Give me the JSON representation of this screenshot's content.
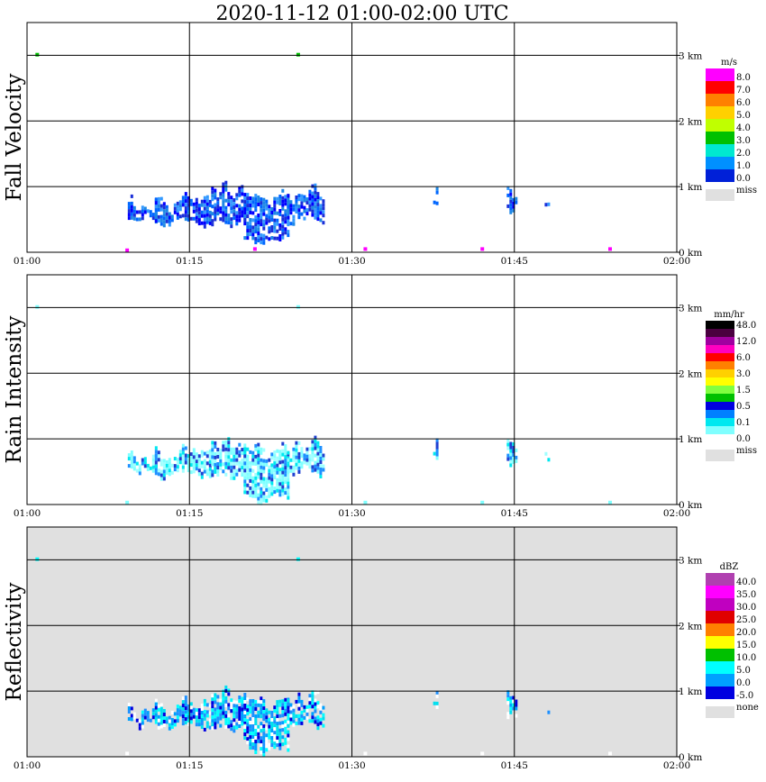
{
  "chart_data": {
    "type": "heatmap",
    "title": "2020-11-12   01:00-02:00 UTC",
    "x_ticks": [
      "01:00",
      "01:15",
      "01:30",
      "01:45",
      "02:00"
    ],
    "xlim_minutes": [
      0,
      60
    ],
    "y_ticks": [
      "0 km",
      "1 km",
      "2 km",
      "3 km"
    ],
    "ylim_km": [
      0,
      3.5
    ],
    "grid": true,
    "panels": [
      {
        "ylabel": "Fall Velocity",
        "unit": "m/s",
        "background": "#ffffff",
        "colorbar": [
          {
            "label": "8.0",
            "color": "#ff00ff"
          },
          {
            "label": "7.0",
            "color": "#ff0000"
          },
          {
            "label": "6.0",
            "color": "#ff8000"
          },
          {
            "label": "5.0",
            "color": "#ffd000"
          },
          {
            "label": "4.0",
            "color": "#c0ff00"
          },
          {
            "label": "3.0",
            "color": "#00c000"
          },
          {
            "label": "2.0",
            "color": "#00e8d0"
          },
          {
            "label": "1.0",
            "color": "#0090ff"
          },
          {
            "label": "0.0",
            "color": "#0020d8"
          }
        ],
        "miss_label": "miss",
        "miss_color": "#e0e0e0",
        "echo_palette": [
          "#0000ff",
          "#1a2fd8",
          "#0066ff",
          "#1e88e5",
          "#3399ff"
        ],
        "echoes": [
          {
            "t0": 9.3,
            "t1": 11.8,
            "hbot": 0.45,
            "htop": 0.8
          },
          {
            "t0": 11.8,
            "t1": 17.0,
            "hbot": 0.42,
            "htop": 0.88
          },
          {
            "t0": 17.0,
            "t1": 20.0,
            "hbot": 0.38,
            "htop": 1.05
          },
          {
            "t0": 20.0,
            "t1": 24.0,
            "hbot": 0.1,
            "htop": 0.95
          },
          {
            "t0": 24.0,
            "t1": 27.3,
            "hbot": 0.45,
            "htop": 1.0
          },
          {
            "t0": 37.5,
            "t1": 37.9,
            "hbot": 0.72,
            "htop": 0.98
          },
          {
            "t0": 44.3,
            "t1": 45.2,
            "hbot": 0.55,
            "htop": 1.03
          },
          {
            "t0": 47.8,
            "t1": 48.1,
            "hbot": 0.62,
            "htop": 0.7
          }
        ],
        "speckles": [
          {
            "t": 0.9,
            "h": 3.01,
            "color": "#00c000"
          },
          {
            "t": 25.0,
            "h": 3.01,
            "color": "#00c000"
          },
          {
            "t": 9.2,
            "h": 0.03,
            "color": "#ff00ff"
          },
          {
            "t": 21.0,
            "h": 0.05,
            "color": "#ff00ff"
          },
          {
            "t": 31.2,
            "h": 0.05,
            "color": "#ff00ff"
          },
          {
            "t": 42.0,
            "h": 0.05,
            "color": "#ff00ff"
          },
          {
            "t": 53.8,
            "h": 0.05,
            "color": "#ff00ff"
          }
        ]
      },
      {
        "ylabel": "Rain Intensity",
        "unit": "mm/hr",
        "background": "#ffffff",
        "colorbar": [
          {
            "label": "48.0",
            "color": "#000000"
          },
          {
            "label": "",
            "color": "#4a0040"
          },
          {
            "label": "12.0",
            "color": "#a000a0"
          },
          {
            "label": "",
            "color": "#ff00c0"
          },
          {
            "label": "6.0",
            "color": "#ff0000"
          },
          {
            "label": "",
            "color": "#ff8000"
          },
          {
            "label": "3.0",
            "color": "#ffd000"
          },
          {
            "label": "",
            "color": "#ffff00"
          },
          {
            "label": "1.5",
            "color": "#80ff40"
          },
          {
            "label": "",
            "color": "#00c000"
          },
          {
            "label": "0.5",
            "color": "#0000e0"
          },
          {
            "label": "",
            "color": "#0080ff"
          },
          {
            "label": "0.1",
            "color": "#00e8f0"
          },
          {
            "label": "",
            "color": "#80ffff"
          },
          {
            "label": "0.0",
            "color": "#ffffff"
          }
        ],
        "miss_label": "miss",
        "miss_color": "#e0e0e0",
        "echo_palette": [
          "#80ffff",
          "#80ffff",
          "#a0ffff",
          "#00e8f0",
          "#1e90ff",
          "#2040d0"
        ],
        "echoes": [
          {
            "t0": 9.3,
            "t1": 11.8,
            "hbot": 0.45,
            "htop": 0.8
          },
          {
            "t0": 11.8,
            "t1": 17.0,
            "hbot": 0.42,
            "htop": 0.88
          },
          {
            "t0": 17.0,
            "t1": 20.0,
            "hbot": 0.38,
            "htop": 1.05
          },
          {
            "t0": 20.0,
            "t1": 24.0,
            "hbot": 0.05,
            "htop": 0.95
          },
          {
            "t0": 24.0,
            "t1": 27.3,
            "hbot": 0.45,
            "htop": 1.0
          },
          {
            "t0": 37.5,
            "t1": 37.9,
            "hbot": 0.72,
            "htop": 0.98
          },
          {
            "t0": 44.3,
            "t1": 45.2,
            "hbot": 0.55,
            "htop": 1.03
          },
          {
            "t0": 47.8,
            "t1": 48.1,
            "hbot": 0.62,
            "htop": 0.7
          }
        ],
        "speckles": [
          {
            "t": 0.9,
            "h": 3.01,
            "color": "#80ffff"
          },
          {
            "t": 25.0,
            "h": 3.01,
            "color": "#80ffff"
          },
          {
            "t": 9.2,
            "h": 0.03,
            "color": "#80ffff"
          },
          {
            "t": 31.2,
            "h": 0.03,
            "color": "#80ffff"
          },
          {
            "t": 42.0,
            "h": 0.03,
            "color": "#80ffff"
          },
          {
            "t": 53.8,
            "h": 0.03,
            "color": "#80ffff"
          }
        ]
      },
      {
        "ylabel": "Reflectivity",
        "unit": "dBZ",
        "background": "#e0e0e0",
        "colorbar": [
          {
            "label": "40.0",
            "color": "#b040b0"
          },
          {
            "label": "35.0",
            "color": "#ff00ff"
          },
          {
            "label": "30.0",
            "color": "#c000c0"
          },
          {
            "label": "25.0",
            "color": "#e00000"
          },
          {
            "label": "20.0",
            "color": "#ff8000"
          },
          {
            "label": "15.0",
            "color": "#ffff00"
          },
          {
            "label": "10.0",
            "color": "#00c000"
          },
          {
            "label": "5.0",
            "color": "#00ffff"
          },
          {
            "label": "0.0",
            "color": "#00a0ff"
          },
          {
            "label": "-5.0",
            "color": "#0000e0"
          }
        ],
        "miss_label": "none",
        "miss_color": "#e0e0e0",
        "echo_palette": [
          "#00ffff",
          "#00e0f0",
          "#00a0ff",
          "#1e90ff",
          "#0000e0",
          "#ffffff"
        ],
        "echoes": [
          {
            "t0": 9.3,
            "t1": 11.8,
            "hbot": 0.45,
            "htop": 0.8
          },
          {
            "t0": 11.8,
            "t1": 17.0,
            "hbot": 0.42,
            "htop": 0.88
          },
          {
            "t0": 17.0,
            "t1": 20.0,
            "hbot": 0.38,
            "htop": 1.05
          },
          {
            "t0": 20.0,
            "t1": 24.0,
            "hbot": 0.05,
            "htop": 0.95
          },
          {
            "t0": 24.0,
            "t1": 27.3,
            "hbot": 0.45,
            "htop": 1.0
          },
          {
            "t0": 37.5,
            "t1": 37.9,
            "hbot": 0.72,
            "htop": 0.98
          },
          {
            "t0": 44.3,
            "t1": 45.2,
            "hbot": 0.55,
            "htop": 1.03
          },
          {
            "t0": 47.8,
            "t1": 48.1,
            "hbot": 0.62,
            "htop": 0.7
          }
        ],
        "speckles": [
          {
            "t": 0.9,
            "h": 3.01,
            "color": "#00ffff"
          },
          {
            "t": 25.0,
            "h": 3.01,
            "color": "#00ffff"
          },
          {
            "t": 9.2,
            "h": 0.05,
            "color": "#ffffff"
          },
          {
            "t": 31.2,
            "h": 0.05,
            "color": "#ffffff"
          },
          {
            "t": 42.0,
            "h": 0.05,
            "color": "#ffffff"
          },
          {
            "t": 53.8,
            "h": 0.05,
            "color": "#ffffff"
          }
        ]
      }
    ]
  }
}
